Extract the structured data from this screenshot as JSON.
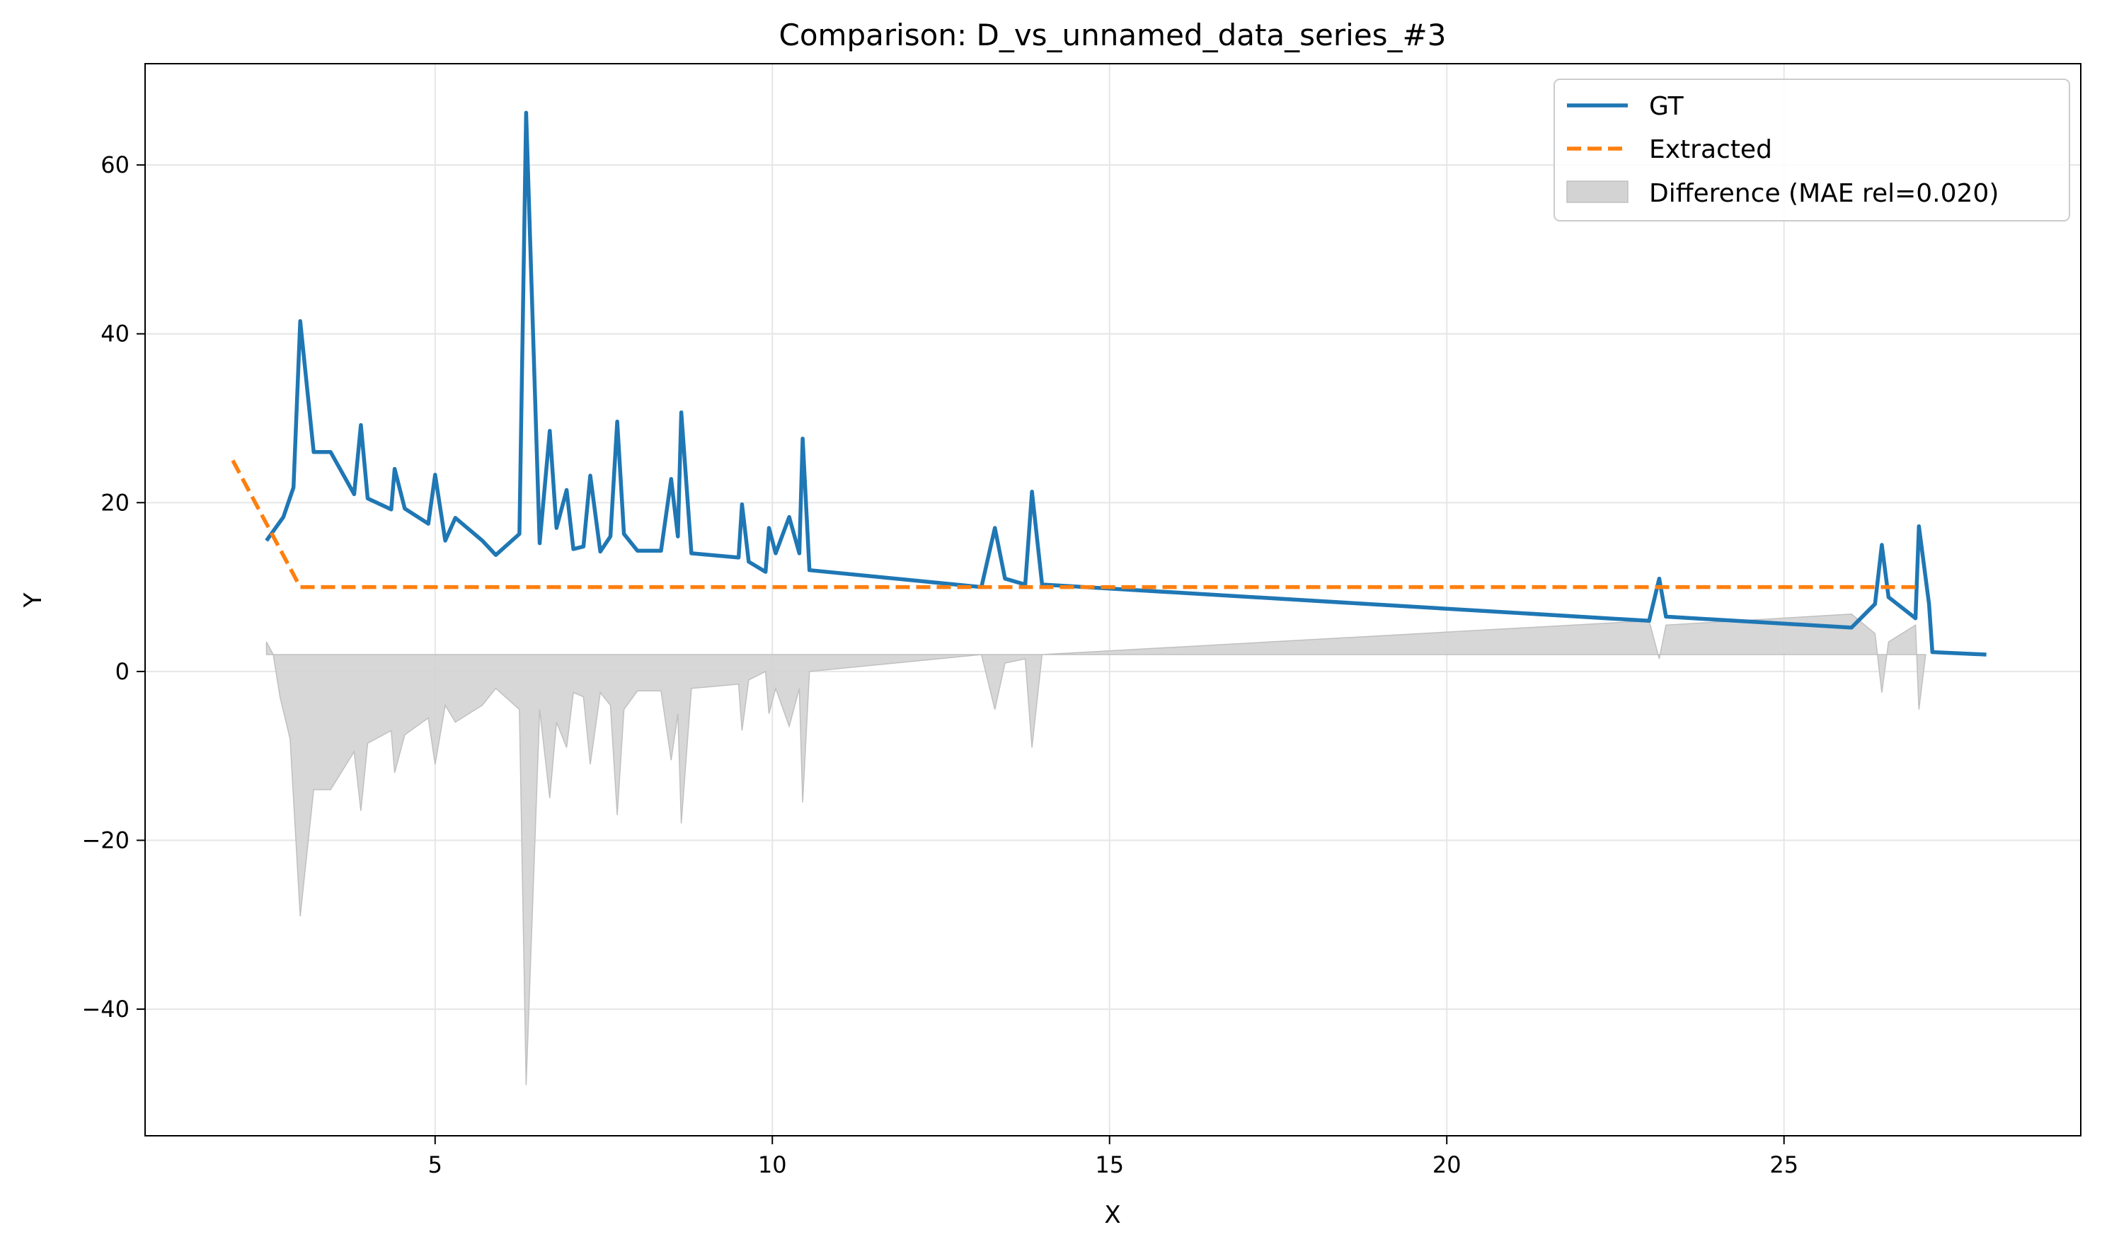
{
  "chart_data": {
    "type": "line",
    "title": "Comparison: D_vs_unnamed_data_series_#3",
    "xlabel": "X",
    "ylabel": "Y",
    "xlim": [
      0.7,
      29.4
    ],
    "ylim": [
      -55,
      72
    ],
    "xticks": [
      5,
      10,
      15,
      20,
      25
    ],
    "yticks": [
      -40,
      -20,
      0,
      20,
      40,
      60
    ],
    "grid": true,
    "legend_position": "top-right",
    "colors": {
      "gt": "#1f77b4",
      "extracted": "#ff7f0e",
      "difference": "#d3d3d3"
    },
    "series": [
      {
        "name": "GT",
        "style": "solid",
        "points": [
          [
            2.5,
            15.5
          ],
          [
            2.75,
            18.3
          ],
          [
            2.9,
            21.8
          ],
          [
            3.0,
            41.5
          ],
          [
            3.2,
            26.0
          ],
          [
            3.45,
            26.0
          ],
          [
            3.8,
            21.0
          ],
          [
            3.9,
            29.2
          ],
          [
            4.0,
            20.5
          ],
          [
            4.35,
            19.2
          ],
          [
            4.4,
            24.0
          ],
          [
            4.55,
            19.3
          ],
          [
            4.9,
            17.5
          ],
          [
            5.0,
            23.3
          ],
          [
            5.15,
            15.5
          ],
          [
            5.3,
            18.2
          ],
          [
            5.7,
            15.5
          ],
          [
            5.9,
            13.8
          ],
          [
            6.25,
            16.3
          ],
          [
            6.35,
            66.2
          ],
          [
            6.55,
            15.2
          ],
          [
            6.7,
            28.5
          ],
          [
            6.8,
            17.0
          ],
          [
            6.95,
            21.5
          ],
          [
            7.05,
            14.5
          ],
          [
            7.2,
            14.8
          ],
          [
            7.3,
            23.2
          ],
          [
            7.45,
            14.2
          ],
          [
            7.6,
            16.0
          ],
          [
            7.7,
            29.6
          ],
          [
            7.8,
            16.3
          ],
          [
            8.0,
            14.3
          ],
          [
            8.35,
            14.3
          ],
          [
            8.5,
            22.8
          ],
          [
            8.6,
            16.0
          ],
          [
            8.65,
            30.7
          ],
          [
            8.8,
            14.0
          ],
          [
            9.5,
            13.5
          ],
          [
            9.55,
            19.8
          ],
          [
            9.65,
            13.0
          ],
          [
            9.9,
            11.8
          ],
          [
            9.95,
            17.0
          ],
          [
            10.05,
            14.0
          ],
          [
            10.25,
            18.3
          ],
          [
            10.4,
            14.0
          ],
          [
            10.45,
            27.6
          ],
          [
            10.55,
            12.0
          ],
          [
            13.1,
            10.0
          ],
          [
            13.3,
            17.0
          ],
          [
            13.45,
            11.0
          ],
          [
            13.75,
            10.3
          ],
          [
            13.85,
            21.3
          ],
          [
            14.0,
            10.3
          ],
          [
            23.0,
            6.0
          ],
          [
            23.15,
            11.0
          ],
          [
            23.25,
            6.5
          ],
          [
            26.0,
            5.2
          ],
          [
            26.35,
            8.0
          ],
          [
            26.45,
            15.0
          ],
          [
            26.55,
            8.8
          ],
          [
            26.95,
            6.3
          ],
          [
            27.0,
            17.2
          ],
          [
            27.15,
            8.0
          ],
          [
            27.2,
            2.3
          ],
          [
            28.0,
            2.0
          ]
        ]
      },
      {
        "name": "Extracted",
        "style": "dashed",
        "points": [
          [
            2.0,
            25.0
          ],
          [
            3.0,
            10.0
          ],
          [
            27.0,
            10.0
          ]
        ]
      }
    ],
    "difference": {
      "name": "Difference (MAE rel=0.020)",
      "baseline": 2.0,
      "points": [
        [
          2.5,
          3.5
        ],
        [
          2.6,
          2.0
        ],
        [
          2.7,
          -3.0
        ],
        [
          2.85,
          -8.0
        ],
        [
          3.0,
          -29.0
        ],
        [
          3.2,
          -14.0
        ],
        [
          3.45,
          -14.0
        ],
        [
          3.8,
          -9.5
        ],
        [
          3.9,
          -16.5
        ],
        [
          4.0,
          -8.5
        ],
        [
          4.35,
          -7.0
        ],
        [
          4.4,
          -12.0
        ],
        [
          4.55,
          -7.5
        ],
        [
          4.9,
          -5.5
        ],
        [
          5.0,
          -11.0
        ],
        [
          5.15,
          -4.0
        ],
        [
          5.3,
          -6.0
        ],
        [
          5.7,
          -4.0
        ],
        [
          5.9,
          -2.0
        ],
        [
          6.25,
          -4.5
        ],
        [
          6.35,
          -49.0
        ],
        [
          6.55,
          -4.5
        ],
        [
          6.7,
          -15.0
        ],
        [
          6.8,
          -6.0
        ],
        [
          6.95,
          -9.0
        ],
        [
          7.05,
          -2.5
        ],
        [
          7.2,
          -3.0
        ],
        [
          7.3,
          -11.0
        ],
        [
          7.45,
          -2.5
        ],
        [
          7.6,
          -4.0
        ],
        [
          7.7,
          -17.0
        ],
        [
          7.8,
          -4.5
        ],
        [
          8.0,
          -2.3
        ],
        [
          8.35,
          -2.3
        ],
        [
          8.5,
          -10.5
        ],
        [
          8.6,
          -5.0
        ],
        [
          8.65,
          -18.0
        ],
        [
          8.8,
          -2.0
        ],
        [
          9.5,
          -1.5
        ],
        [
          9.55,
          -7.0
        ],
        [
          9.65,
          -1.0
        ],
        [
          9.9,
          0.0
        ],
        [
          9.95,
          -5.0
        ],
        [
          10.05,
          -2.0
        ],
        [
          10.25,
          -6.5
        ],
        [
          10.4,
          -2.0
        ],
        [
          10.45,
          -15.5
        ],
        [
          10.55,
          0.0
        ],
        [
          13.1,
          2.0
        ],
        [
          13.3,
          -4.5
        ],
        [
          13.45,
          1.0
        ],
        [
          13.75,
          1.5
        ],
        [
          13.85,
          -9.0
        ],
        [
          14.0,
          2.0
        ],
        [
          23.0,
          6.0
        ],
        [
          23.15,
          1.5
        ],
        [
          23.25,
          5.5
        ],
        [
          26.0,
          6.8
        ],
        [
          26.35,
          4.5
        ],
        [
          26.45,
          -2.5
        ],
        [
          26.55,
          3.5
        ],
        [
          26.95,
          5.5
        ],
        [
          27.0,
          -4.5
        ],
        [
          27.1,
          2.0
        ]
      ]
    }
  }
}
